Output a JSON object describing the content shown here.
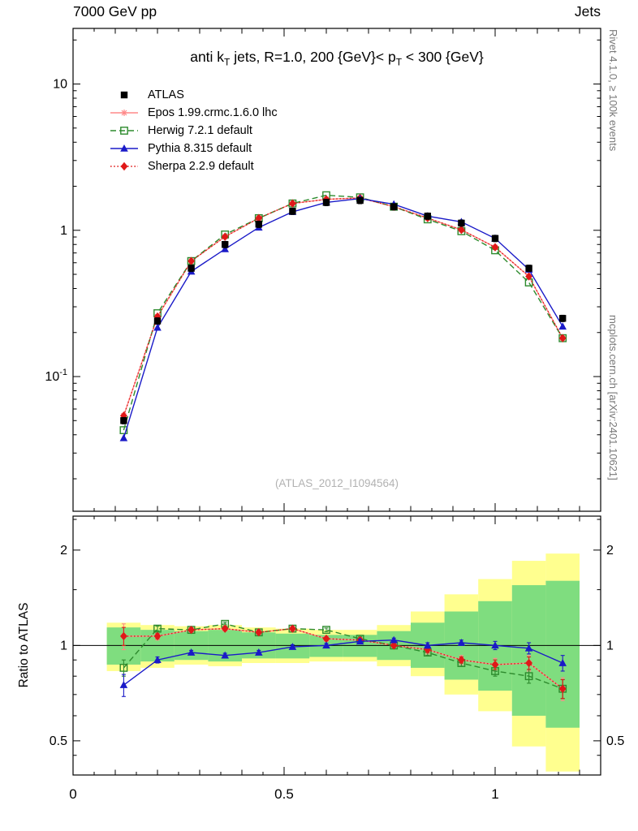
{
  "header": {
    "left": "7000 GeV pp",
    "right": "Jets"
  },
  "title": {
    "pre": "anti k",
    "sub1": "T",
    "mid": " jets, R=1.0,  200 {GeV}< p",
    "sub2": "T",
    "post": " < 300 {GeV}"
  },
  "watermark": "(ATLAS_2012_I1094564)",
  "sidebar": {
    "top": "Rivet 4.1.0, ≥ 100k events",
    "bottom": "mcplots.cern.ch [arXiv:2401.10621]"
  },
  "legend": [
    {
      "series_id": "atlas",
      "label": "ATLAS"
    },
    {
      "series_id": "epos",
      "label": "Epos 1.99.crmc.1.6.0 lhc"
    },
    {
      "series_id": "herwig",
      "label": "Herwig 7.2.1 default"
    },
    {
      "series_id": "pythia",
      "label": "Pythia 8.315 default"
    },
    {
      "series_id": "sherpa",
      "label": "Sherpa 2.2.9 default"
    }
  ],
  "chart_data": [
    {
      "type": "line",
      "name": "spectrum",
      "title": "anti kT jets, R=1.0, 200 {GeV}< pT < 300 {GeV}",
      "xlim": [
        0,
        1.25
      ],
      "ylim": [
        0.012,
        24
      ],
      "yscale": "log",
      "x": [
        0.12,
        0.2,
        0.28,
        0.36,
        0.44,
        0.52,
        0.6,
        0.68,
        0.76,
        0.84,
        0.92,
        1.0,
        1.08,
        1.16
      ],
      "yticks": [
        {
          "v": 10,
          "label": "10"
        },
        {
          "v": 1,
          "label": "1"
        },
        {
          "v": 0.1,
          "label": "10",
          "exp": "-1"
        }
      ],
      "series": [
        {
          "id": "epos",
          "label": "Epos 1.99.crmc.1.6.0 lhc",
          "color": "#ff8888",
          "marker": "asterisk-open",
          "line": "solid",
          "values": [
            0.054,
            0.257,
            0.616,
            0.904,
            1.21,
            1.526,
            1.628,
            1.664,
            1.45,
            1.213,
            1.008,
            0.766,
            0.484,
            0.183
          ]
        },
        {
          "id": "herwig",
          "label": "Herwig 7.2.1 default",
          "color": "#2e8b2e",
          "marker": "square-open",
          "line": "dashed",
          "values": [
            0.043,
            0.271,
            0.616,
            0.936,
            1.21,
            1.526,
            1.736,
            1.68,
            1.45,
            1.188,
            0.986,
            0.73,
            0.44,
            0.183
          ]
        },
        {
          "id": "sherpa",
          "label": "Sherpa 2.2.9 default",
          "color": "#e01818",
          "marker": "diamond-filled",
          "line": "dotted",
          "values": [
            0.054,
            0.257,
            0.616,
            0.904,
            1.21,
            1.526,
            1.628,
            1.664,
            1.45,
            1.213,
            1.008,
            0.766,
            0.484,
            0.183
          ]
        },
        {
          "id": "pythia",
          "label": "Pythia 8.315 default",
          "color": "#1a1ac8",
          "marker": "triangle-filled",
          "line": "solid",
          "values": [
            0.038,
            0.216,
            0.523,
            0.744,
            1.045,
            1.337,
            1.55,
            1.648,
            1.508,
            1.25,
            1.142,
            0.88,
            0.539,
            0.22
          ]
        },
        {
          "id": "atlas",
          "label": "ATLAS",
          "color": "#000000",
          "marker": "square-filled",
          "line": "none",
          "err_frac": 0.05,
          "values": [
            0.05,
            0.24,
            0.55,
            0.8,
            1.1,
            1.35,
            1.55,
            1.6,
            1.45,
            1.25,
            1.12,
            0.88,
            0.55,
            0.25
          ]
        }
      ]
    },
    {
      "type": "line",
      "name": "ratio",
      "ylabel": "Ratio to ATLAS",
      "xlim": [
        0,
        1.25
      ],
      "ylim": [
        0.39,
        2.56
      ],
      "yscale": "log",
      "reference_line": 1,
      "x": [
        0.12,
        0.2,
        0.28,
        0.36,
        0.44,
        0.52,
        0.6,
        0.68,
        0.76,
        0.84,
        0.92,
        1.0,
        1.08,
        1.16
      ],
      "yticks": [
        {
          "v": 2,
          "label": "2"
        },
        {
          "v": 1,
          "label": "1"
        },
        {
          "v": 0.5,
          "label": "0.5"
        }
      ],
      "xticks": [
        {
          "v": 0,
          "label": "0"
        },
        {
          "v": 0.5,
          "label": "0.5"
        },
        {
          "v": 1,
          "label": "1"
        }
      ],
      "bands": {
        "yellow_color": "#ffff8f",
        "green_color": "#7fdd7f",
        "x_edges": [
          0.08,
          0.16,
          0.24,
          0.32,
          0.4,
          0.48,
          0.56,
          0.64,
          0.72,
          0.8,
          0.88,
          0.96,
          1.04,
          1.12,
          1.2
        ],
        "yellow": [
          [
            0.83,
            1.18
          ],
          [
            0.85,
            1.16
          ],
          [
            0.87,
            1.15
          ],
          [
            0.86,
            1.16
          ],
          [
            0.88,
            1.14
          ],
          [
            0.88,
            1.13
          ],
          [
            0.89,
            1.12
          ],
          [
            0.89,
            1.12
          ],
          [
            0.86,
            1.16
          ],
          [
            0.8,
            1.28
          ],
          [
            0.7,
            1.45
          ],
          [
            0.62,
            1.62
          ],
          [
            0.48,
            1.85
          ],
          [
            0.4,
            1.95
          ]
        ],
        "green": [
          [
            0.87,
            1.14
          ],
          [
            0.89,
            1.12
          ],
          [
            0.9,
            1.11
          ],
          [
            0.89,
            1.12
          ],
          [
            0.91,
            1.1
          ],
          [
            0.91,
            1.09
          ],
          [
            0.92,
            1.08
          ],
          [
            0.92,
            1.08
          ],
          [
            0.9,
            1.11
          ],
          [
            0.85,
            1.18
          ],
          [
            0.78,
            1.28
          ],
          [
            0.72,
            1.38
          ],
          [
            0.6,
            1.55
          ],
          [
            0.55,
            1.6
          ]
        ]
      },
      "series": [
        {
          "id": "epos",
          "color": "#ff8888",
          "marker": "asterisk-open",
          "line": "solid",
          "values": [
            1.07,
            1.07,
            1.12,
            1.13,
            1.1,
            1.13,
            1.05,
            1.04,
            1.0,
            0.97,
            0.9,
            0.87,
            0.88,
            0.73
          ],
          "err": [
            0.1,
            0.03,
            0.02,
            0.02,
            0.02,
            0.02,
            0.02,
            0.02,
            0.02,
            0.03,
            0.03,
            0.04,
            0.05,
            0.06
          ]
        },
        {
          "id": "herwig",
          "color": "#2e8b2e",
          "marker": "square-open",
          "line": "dashed",
          "values": [
            0.85,
            1.13,
            1.12,
            1.17,
            1.1,
            1.13,
            1.12,
            1.05,
            1.0,
            0.95,
            0.88,
            0.83,
            0.8,
            0.73
          ],
          "err": [
            0.05,
            0.02,
            0.015,
            0.015,
            0.015,
            0.015,
            0.015,
            0.015,
            0.015,
            0.02,
            0.02,
            0.03,
            0.04,
            0.05
          ]
        },
        {
          "id": "sherpa",
          "color": "#e01818",
          "marker": "diamond-filled",
          "line": "dotted",
          "values": [
            1.07,
            1.07,
            1.12,
            1.13,
            1.1,
            1.13,
            1.05,
            1.04,
            1.0,
            0.97,
            0.9,
            0.87,
            0.88,
            0.73
          ],
          "err": [
            0.07,
            0.02,
            0.015,
            0.015,
            0.015,
            0.015,
            0.015,
            0.015,
            0.015,
            0.02,
            0.02,
            0.03,
            0.04,
            0.05
          ]
        },
        {
          "id": "pythia",
          "color": "#1a1ac8",
          "marker": "triangle-filled",
          "line": "solid",
          "values": [
            0.75,
            0.9,
            0.95,
            0.93,
            0.95,
            0.99,
            1.0,
            1.03,
            1.04,
            1.0,
            1.02,
            1.0,
            0.98,
            0.88
          ],
          "err": [
            0.06,
            0.02,
            0.015,
            0.015,
            0.015,
            0.015,
            0.015,
            0.015,
            0.015,
            0.02,
            0.02,
            0.03,
            0.04,
            0.05
          ]
        }
      ]
    }
  ]
}
